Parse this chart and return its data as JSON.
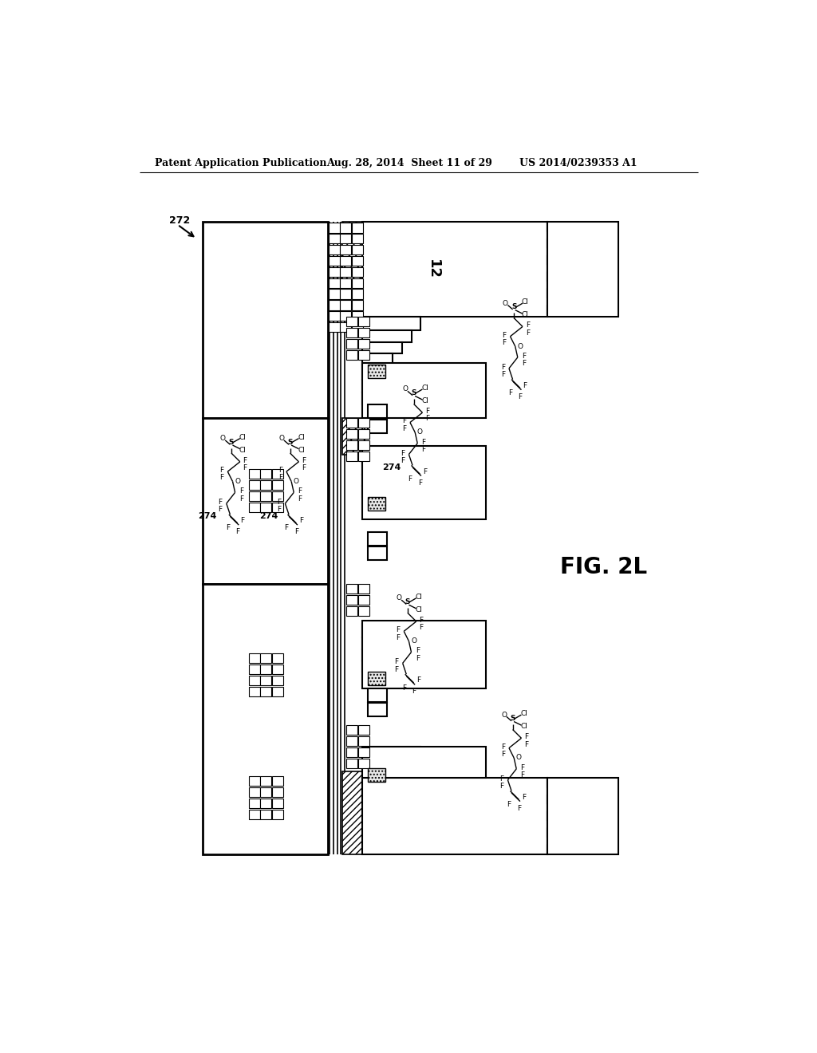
{
  "bg_color": "#ffffff",
  "header_left": "Patent Application Publication",
  "header_mid": "Aug. 28, 2014  Sheet 11 of 29",
  "header_right": "US 2014/0239353 A1",
  "fig_label": "FIG. 2L",
  "label_272": "272",
  "label_12": "12",
  "label_274": "274"
}
